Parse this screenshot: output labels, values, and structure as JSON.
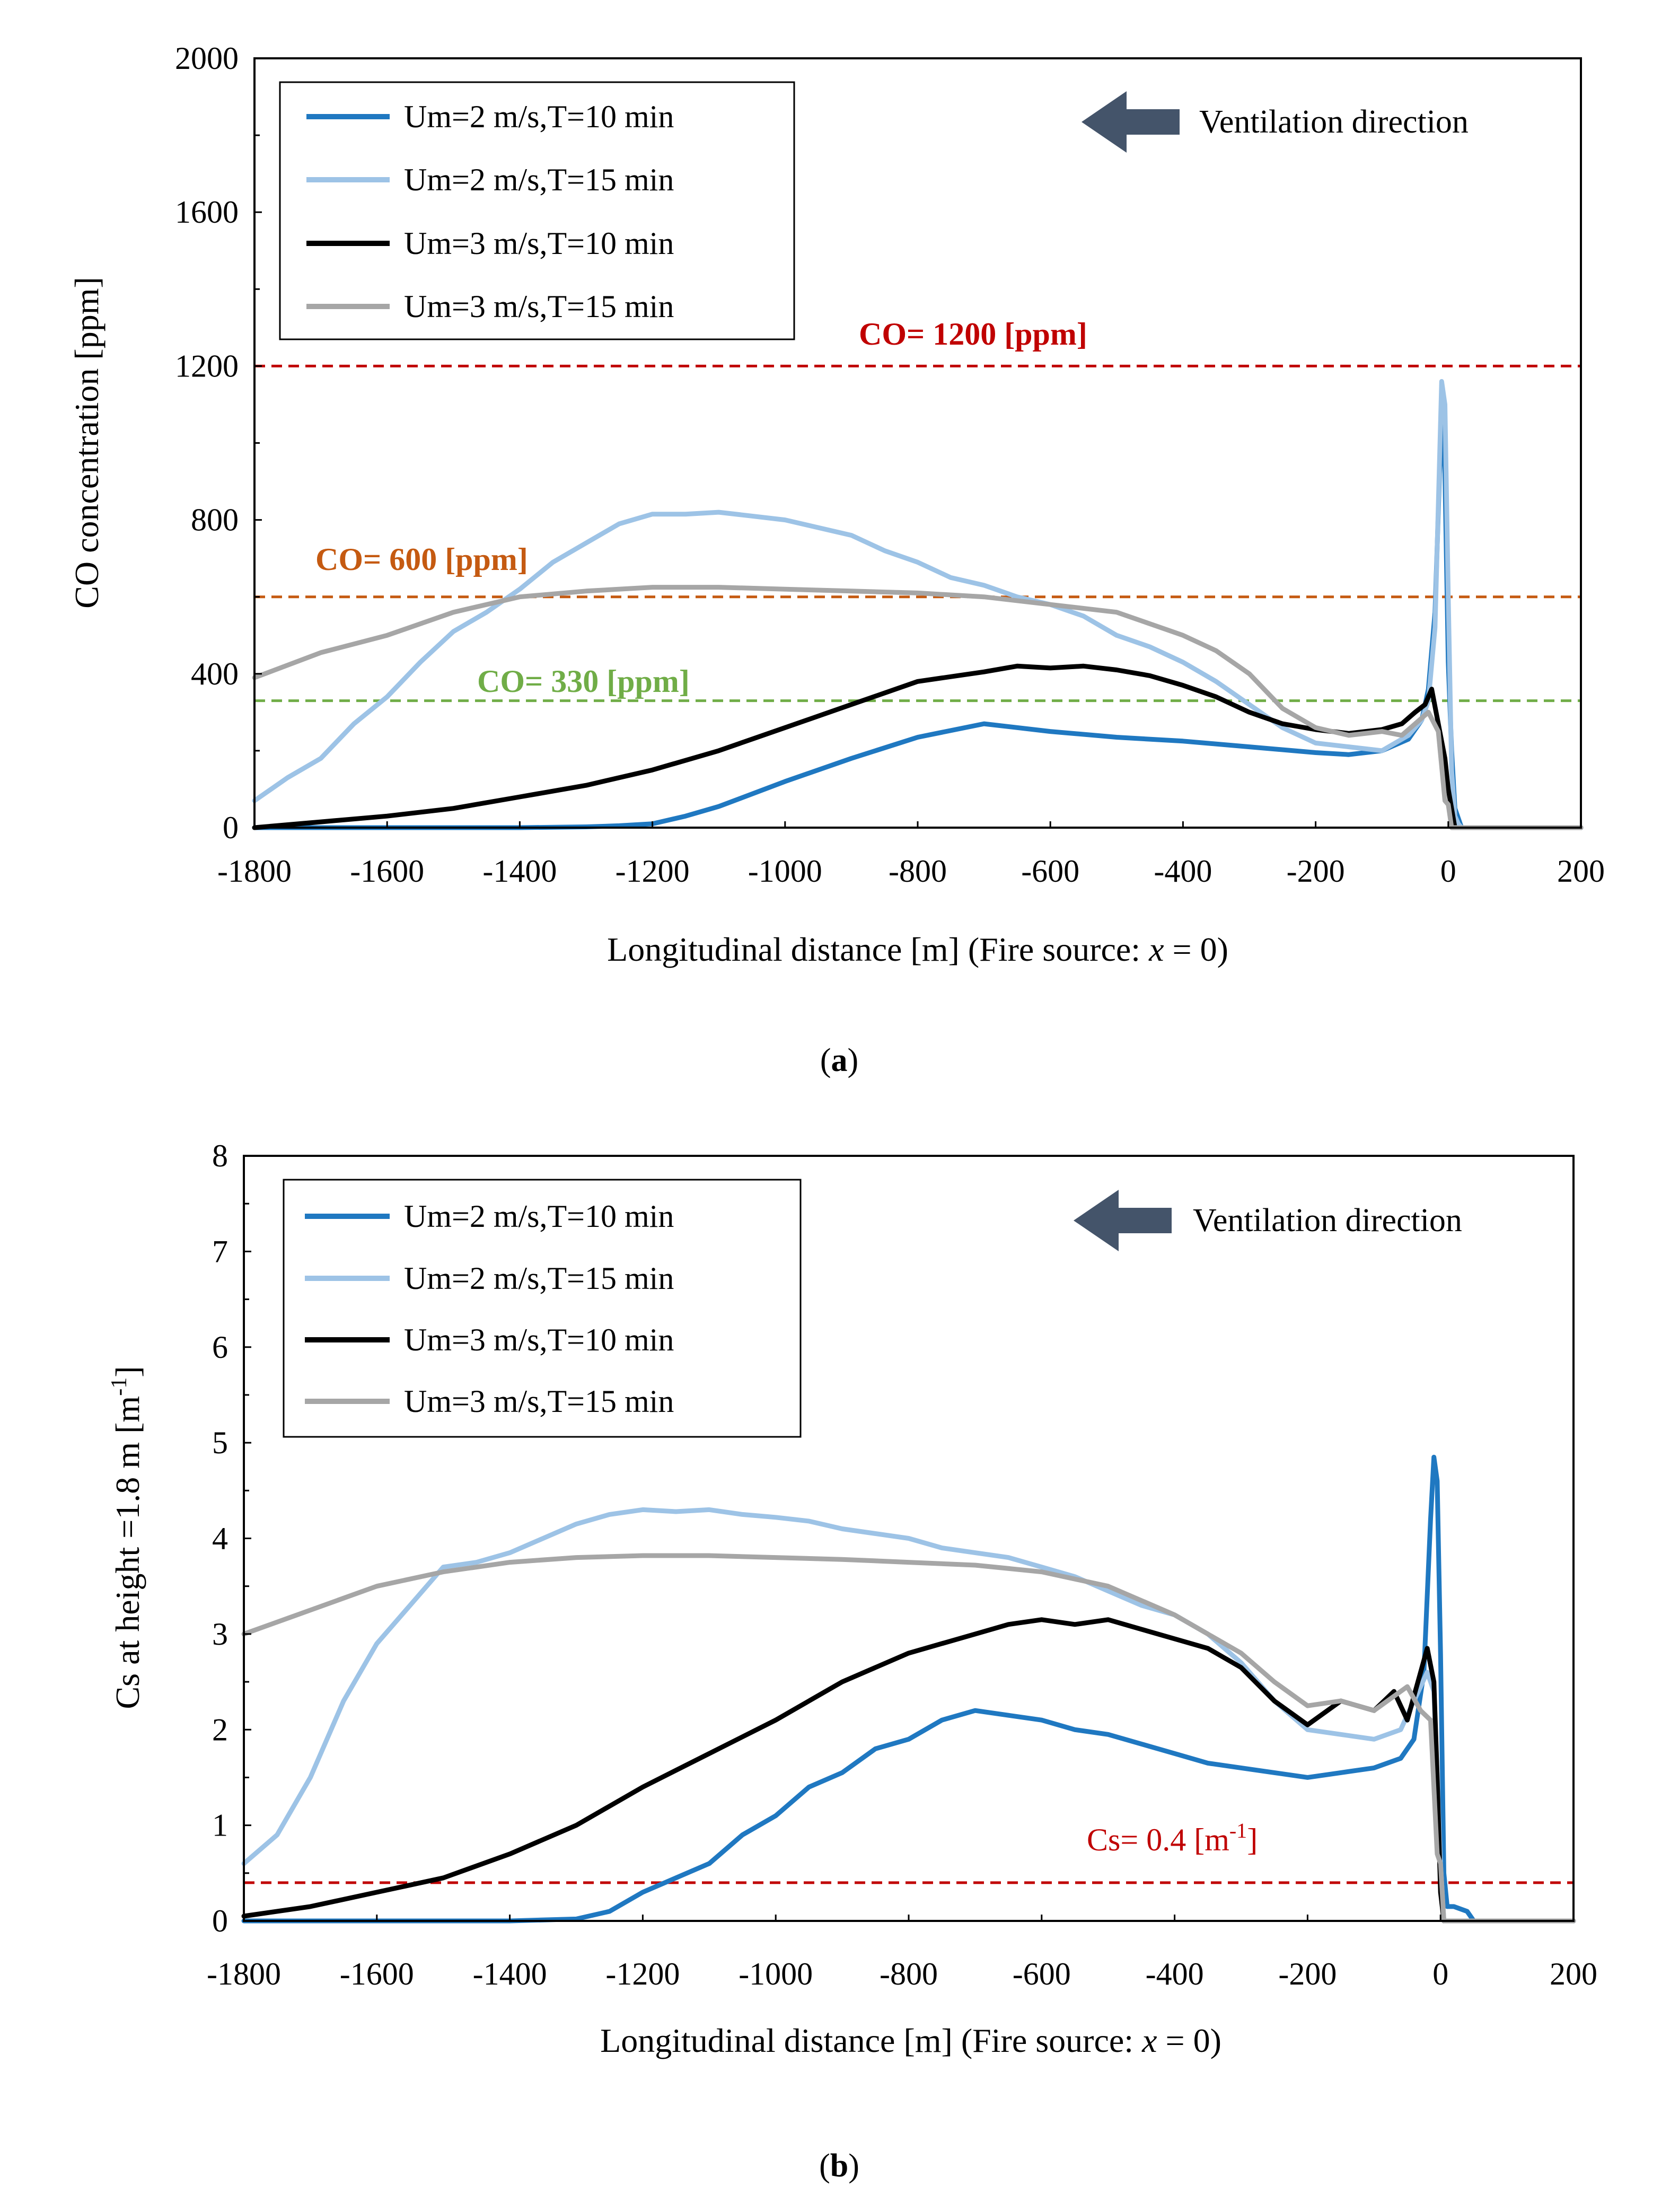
{
  "chart_data": [
    {
      "type": "line",
      "panel_label": "a",
      "xlabel": "Longitudinal distance [m] (Fire source: x = 0)",
      "xlabel_main": "Longitudinal distance [m] (Fire source: ",
      "xlabel_var": "x",
      "xlabel_tail": " = 0)",
      "ylabel": "CO concentration [ppm]",
      "xlim": [
        -1800,
        200
      ],
      "ylim": [
        0,
        2000
      ],
      "x_ticks": [
        -1800,
        -1600,
        -1400,
        -1200,
        -1000,
        -800,
        -600,
        -400,
        -200,
        0,
        200
      ],
      "y_ticks": [
        0,
        400,
        800,
        1200,
        1600,
        2000
      ],
      "legend_position": "top-left",
      "annotation": "Ventilation direction",
      "thresholds": [
        {
          "label": "CO= 1200 [ppm]",
          "value": 1200,
          "color": "#c00000",
          "bold": true
        },
        {
          "label": "CO= 600 [ppm]",
          "value": 600,
          "color": "#c55a11",
          "bold": true
        },
        {
          "label": "CO= 330 [ppm]",
          "value": 330,
          "color": "#70ad47",
          "bold": true
        }
      ],
      "series": [
        {
          "name": "Um=2 m/s,T=10 min",
          "color": "#1f78c1",
          "x": [
            -1800,
            -1600,
            -1400,
            -1300,
            -1250,
            -1200,
            -1150,
            -1100,
            -1000,
            -900,
            -800,
            -700,
            -600,
            -500,
            -400,
            -300,
            -200,
            -150,
            -100,
            -60,
            -40,
            -30,
            -20,
            -15,
            -10,
            -5,
            0,
            5,
            10,
            20,
            50,
            100,
            200
          ],
          "y": [
            0,
            0,
            0,
            2,
            5,
            10,
            30,
            55,
            120,
            180,
            235,
            270,
            250,
            235,
            225,
            210,
            195,
            190,
            200,
            230,
            280,
            360,
            560,
            820,
            1100,
            920,
            430,
            200,
            50,
            0,
            0,
            0,
            0
          ]
        },
        {
          "name": "Um=2 m/s,T=15 min",
          "color": "#9dc3e6",
          "x": [
            -1800,
            -1750,
            -1700,
            -1650,
            -1600,
            -1550,
            -1500,
            -1450,
            -1400,
            -1350,
            -1300,
            -1250,
            -1200,
            -1150,
            -1100,
            -1050,
            -1000,
            -950,
            -900,
            -850,
            -800,
            -750,
            -700,
            -650,
            -600,
            -550,
            -500,
            -450,
            -400,
            -350,
            -300,
            -250,
            -200,
            -150,
            -100,
            -60,
            -40,
            -30,
            -20,
            -10,
            -5,
            0,
            5,
            10,
            15,
            20,
            50,
            100,
            200
          ],
          "y": [
            70,
            130,
            180,
            270,
            340,
            430,
            510,
            560,
            620,
            690,
            740,
            790,
            815,
            815,
            820,
            810,
            800,
            780,
            760,
            720,
            690,
            650,
            630,
            600,
            580,
            550,
            500,
            470,
            430,
            380,
            320,
            260,
            220,
            210,
            200,
            240,
            280,
            330,
            520,
            1160,
            1100,
            600,
            150,
            30,
            10,
            0,
            0,
            0,
            0
          ]
        },
        {
          "name": "Um=3 m/s,T=10 min",
          "color": "#000000",
          "x": [
            -1800,
            -1700,
            -1600,
            -1500,
            -1400,
            -1300,
            -1200,
            -1100,
            -1000,
            -900,
            -800,
            -700,
            -650,
            -600,
            -550,
            -500,
            -450,
            -400,
            -350,
            -300,
            -250,
            -200,
            -150,
            -100,
            -70,
            -50,
            -35,
            -25,
            -15,
            -5,
            0,
            10,
            20,
            50,
            200
          ],
          "y": [
            0,
            15,
            30,
            50,
            80,
            110,
            150,
            200,
            260,
            320,
            380,
            405,
            420,
            415,
            420,
            410,
            395,
            370,
            340,
            300,
            270,
            255,
            245,
            255,
            270,
            300,
            320,
            360,
            270,
            180,
            100,
            0,
            0,
            0,
            0
          ]
        },
        {
          "name": "Um=3 m/s,T=15 min",
          "color": "#a6a6a6",
          "x": [
            -1800,
            -1700,
            -1600,
            -1500,
            -1400,
            -1300,
            -1200,
            -1100,
            -1000,
            -900,
            -800,
            -700,
            -600,
            -500,
            -450,
            -400,
            -350,
            -300,
            -250,
            -200,
            -150,
            -100,
            -70,
            -50,
            -30,
            -15,
            -5,
            0,
            5,
            20,
            50,
            200
          ],
          "y": [
            390,
            455,
            500,
            560,
            600,
            615,
            625,
            625,
            620,
            615,
            610,
            600,
            580,
            560,
            530,
            500,
            460,
            400,
            310,
            260,
            240,
            250,
            240,
            270,
            300,
            250,
            70,
            60,
            0,
            0,
            0,
            0
          ]
        }
      ]
    },
    {
      "type": "line",
      "panel_label": "b",
      "xlabel": "Longitudinal distance [m] (Fire source: x = 0)",
      "xlabel_main": "Longitudinal distance [m] (Fire source: ",
      "xlabel_var": "x",
      "xlabel_tail": " = 0)",
      "ylabel": "Cs at height =1.8 m [m-1]",
      "ylabel_main": "Cs at height =1.8 m [m",
      "ylabel_sup": "-1",
      "ylabel_tail": "]",
      "xlim": [
        -1800,
        200
      ],
      "ylim": [
        0,
        8
      ],
      "x_ticks": [
        -1800,
        -1600,
        -1400,
        -1200,
        -1000,
        -800,
        -600,
        -400,
        -200,
        0,
        200
      ],
      "y_ticks": [
        0,
        1,
        2,
        3,
        4,
        5,
        6,
        7,
        8
      ],
      "legend_position": "top-left",
      "annotation": "Ventilation direction",
      "thresholds": [
        {
          "label": "Cs= 0.4 [m-1]",
          "label_main": "Cs= 0.4 [m",
          "label_sup": "-1",
          "label_tail": "]",
          "value": 0.4,
          "color": "#c00000",
          "bold": false
        }
      ],
      "series": [
        {
          "name": "Um=2 m/s,T=10 min",
          "color": "#1f78c1",
          "x": [
            -1800,
            -1400,
            -1300,
            -1250,
            -1200,
            -1150,
            -1100,
            -1050,
            -1000,
            -950,
            -900,
            -850,
            -800,
            -750,
            -700,
            -650,
            -600,
            -550,
            -500,
            -450,
            -400,
            -350,
            -300,
            -250,
            -200,
            -150,
            -100,
            -60,
            -40,
            -25,
            -15,
            -10,
            -5,
            0,
            5,
            10,
            20,
            40,
            50,
            60,
            200
          ],
          "y": [
            0,
            0,
            0.02,
            0.1,
            0.3,
            0.45,
            0.6,
            0.9,
            1.1,
            1.4,
            1.55,
            1.8,
            1.9,
            2.1,
            2.2,
            2.15,
            2.1,
            2.0,
            1.95,
            1.85,
            1.75,
            1.65,
            1.6,
            1.55,
            1.5,
            1.55,
            1.6,
            1.7,
            1.9,
            2.6,
            4.2,
            4.85,
            4.6,
            2.8,
            0.5,
            0.15,
            0.15,
            0.1,
            0,
            0,
            0
          ]
        },
        {
          "name": "Um=2 m/s,T=15 min",
          "color": "#9dc3e6",
          "x": [
            -1800,
            -1750,
            -1700,
            -1650,
            -1600,
            -1550,
            -1500,
            -1450,
            -1400,
            -1350,
            -1300,
            -1250,
            -1200,
            -1150,
            -1100,
            -1050,
            -1000,
            -950,
            -900,
            -850,
            -800,
            -750,
            -700,
            -650,
            -600,
            -550,
            -500,
            -450,
            -400,
            -350,
            -300,
            -250,
            -200,
            -150,
            -100,
            -60,
            -40,
            -20,
            -10,
            0,
            5,
            20,
            200
          ],
          "y": [
            0.6,
            0.9,
            1.5,
            2.3,
            2.9,
            3.3,
            3.7,
            3.75,
            3.85,
            4.0,
            4.15,
            4.25,
            4.3,
            4.28,
            4.3,
            4.25,
            4.22,
            4.18,
            4.1,
            4.05,
            4.0,
            3.9,
            3.85,
            3.8,
            3.7,
            3.6,
            3.45,
            3.3,
            3.2,
            3.0,
            2.7,
            2.3,
            2.0,
            1.95,
            1.9,
            2.0,
            2.3,
            2.6,
            2.4,
            0.6,
            0,
            0,
            0
          ]
        },
        {
          "name": "Um=3 m/s,T=10 min",
          "color": "#000000",
          "x": [
            -1800,
            -1700,
            -1600,
            -1500,
            -1400,
            -1300,
            -1200,
            -1100,
            -1000,
            -900,
            -800,
            -700,
            -650,
            -600,
            -550,
            -500,
            -450,
            -400,
            -350,
            -300,
            -250,
            -200,
            -150,
            -100,
            -70,
            -50,
            -30,
            -20,
            -10,
            -5,
            0,
            5,
            20,
            200
          ],
          "y": [
            0.05,
            0.15,
            0.3,
            0.45,
            0.7,
            1.0,
            1.4,
            1.75,
            2.1,
            2.5,
            2.8,
            3.0,
            3.1,
            3.15,
            3.1,
            3.15,
            3.05,
            2.95,
            2.85,
            2.65,
            2.3,
            2.05,
            2.3,
            2.2,
            2.4,
            2.1,
            2.6,
            2.85,
            2.5,
            1.5,
            0.3,
            0,
            0,
            0
          ]
        },
        {
          "name": "Um=3 m/s,T=15 min",
          "color": "#a6a6a6",
          "x": [
            -1800,
            -1700,
            -1600,
            -1500,
            -1400,
            -1300,
            -1200,
            -1100,
            -1000,
            -900,
            -800,
            -700,
            -600,
            -500,
            -450,
            -400,
            -350,
            -300,
            -250,
            -200,
            -150,
            -100,
            -70,
            -50,
            -30,
            -15,
            -5,
            0,
            5,
            20,
            200
          ],
          "y": [
            3.0,
            3.25,
            3.5,
            3.65,
            3.75,
            3.8,
            3.82,
            3.82,
            3.8,
            3.78,
            3.75,
            3.72,
            3.65,
            3.5,
            3.35,
            3.2,
            3.0,
            2.8,
            2.5,
            2.25,
            2.3,
            2.2,
            2.35,
            2.45,
            2.2,
            2.1,
            0.7,
            0.6,
            0,
            0,
            0
          ]
        }
      ]
    }
  ]
}
